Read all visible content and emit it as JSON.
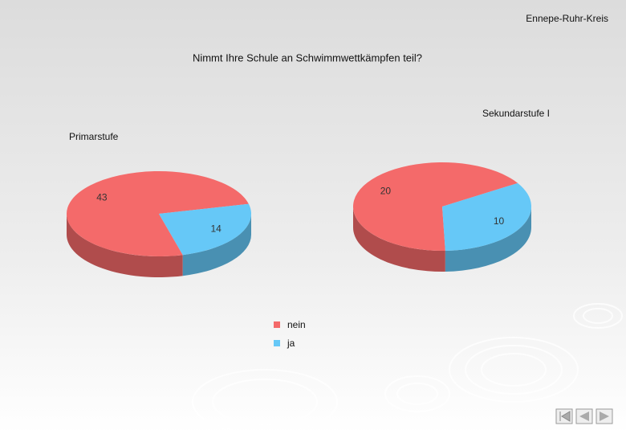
{
  "header": "Ennepe-Ruhr-Kreis",
  "title": "Nimmt Ihre Schule an Schwimmwettkämpfen teil?",
  "chart_data": [
    {
      "type": "pie",
      "title": "Primarstufe",
      "categories": [
        "nein",
        "ja"
      ],
      "values": [
        43,
        14
      ],
      "colors": [
        "#f46a6a",
        "#66c8f7"
      ]
    },
    {
      "type": "pie",
      "title": "Sekundarstufe I",
      "categories": [
        "nein",
        "ja"
      ],
      "values": [
        20,
        10
      ],
      "colors": [
        "#f46a6a",
        "#66c8f7"
      ]
    }
  ]
}
